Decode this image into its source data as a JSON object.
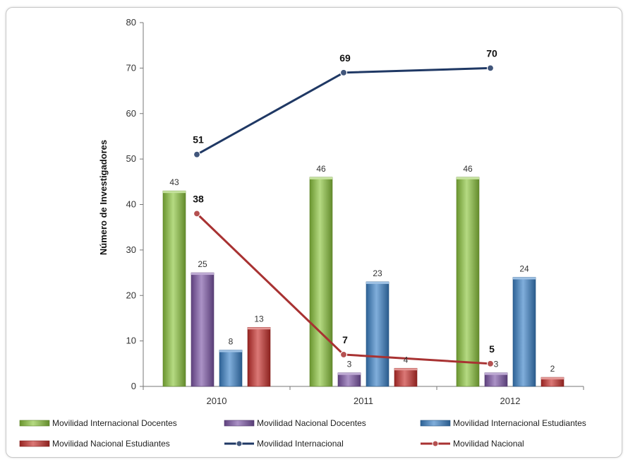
{
  "chart_data": {
    "type": "bar",
    "title": "",
    "ylabel": "Número de Investigadores",
    "xlabel": "",
    "ylim": [
      0,
      80
    ],
    "yticks": [
      0,
      10,
      20,
      30,
      40,
      50,
      60,
      70,
      80
    ],
    "categories": [
      "2010",
      "2011",
      "2012"
    ],
    "bar_series": [
      {
        "name": "Movilidad Internacional Docentes",
        "color": "#8dc63f",
        "values": [
          43,
          46,
          46
        ]
      },
      {
        "name": "Movilidad Nacional Docentes",
        "color": "#7e57a8",
        "values": [
          25,
          3,
          3
        ]
      },
      {
        "name": "Movilidad Internacional Estudiantes",
        "color": "#3c82c8",
        "values": [
          8,
          23,
          24
        ]
      },
      {
        "name": "Movilidad Nacional Estudiantes",
        "color": "#c8302c",
        "values": [
          13,
          4,
          2
        ]
      }
    ],
    "line_series": [
      {
        "name": "Movilidad Internacional",
        "color": "#1f3864",
        "values": [
          51,
          69,
          70
        ]
      },
      {
        "name": "Movilidad Nacional",
        "color": "#a83232",
        "values": [
          38,
          7,
          5
        ]
      }
    ],
    "legend_position": "bottom",
    "grid": false
  }
}
